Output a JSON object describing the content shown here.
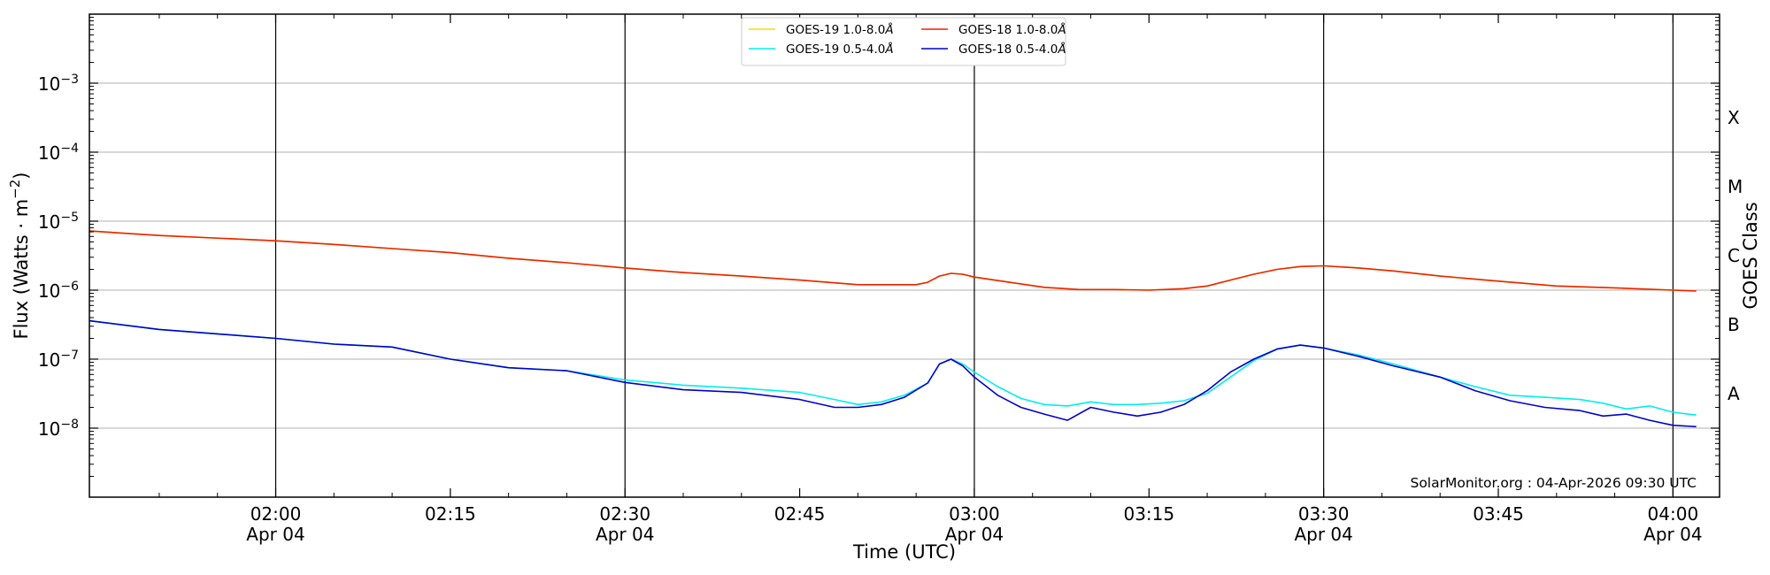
{
  "chart_data": {
    "type": "line",
    "xlabel": "Time (UTC)",
    "ylabel": "Flux (Watts · m",
    "ylabel_sup": "−2",
    "ylabel_close": ")",
    "yscale": "log",
    "ylim": [
      1e-09,
      0.01
    ],
    "xlim": [
      "01:44",
      "04:04"
    ],
    "y_ticks": [
      {
        "value": 1e-08,
        "base": "10",
        "exp": "−8"
      },
      {
        "value": 1e-07,
        "base": "10",
        "exp": "−7"
      },
      {
        "value": 1e-06,
        "base": "10",
        "exp": "−6"
      },
      {
        "value": 1e-05,
        "base": "10",
        "exp": "−5"
      },
      {
        "value": 0.0001,
        "base": "10",
        "exp": "−4"
      },
      {
        "value": 0.001,
        "base": "10",
        "exp": "−3"
      }
    ],
    "x_ticks": [
      {
        "time": "02:00",
        "label": "02:00",
        "date": "Apr 04",
        "vline": true
      },
      {
        "time": "02:15",
        "label": "02:15",
        "date": "",
        "vline": false
      },
      {
        "time": "02:30",
        "label": "02:30",
        "date": "Apr 04",
        "vline": true
      },
      {
        "time": "02:45",
        "label": "02:45",
        "date": "",
        "vline": false
      },
      {
        "time": "03:00",
        "label": "03:00",
        "date": "Apr 04",
        "vline": true
      },
      {
        "time": "03:15",
        "label": "03:15",
        "date": "",
        "vline": false
      },
      {
        "time": "03:30",
        "label": "03:30",
        "date": "Apr 04",
        "vline": true
      },
      {
        "time": "03:45",
        "label": "03:45",
        "date": "",
        "vline": false
      },
      {
        "time": "04:00",
        "label": "04:00",
        "date": "Apr 04",
        "vline": true
      }
    ],
    "right_axis": {
      "title": "GOES Class",
      "classes": [
        {
          "label": "A",
          "value": 3.16e-08
        },
        {
          "label": "B",
          "value": 3.16e-07
        },
        {
          "label": "C",
          "value": 3.16e-06
        },
        {
          "label": "M",
          "value": 3.16e-05
        },
        {
          "label": "X",
          "value": 0.000316
        }
      ]
    },
    "grid": "horizontal",
    "legend_position": "top-center",
    "legend": [
      {
        "label": "GOES-19 1.0-8.0",
        "unit": "Å",
        "color": "#ffd700"
      },
      {
        "label": "GOES-19 0.5-4.0",
        "unit": "Å",
        "color": "#00eeee"
      },
      {
        "label": "GOES-18 1.0-8.0",
        "unit": "Å",
        "color": "#ee2200"
      },
      {
        "label": "GOES-18 0.5-4.0",
        "unit": "Å",
        "color": "#0000cc"
      }
    ],
    "credit": "SolarMonitor.org : 04-Apr-2026 09:30 UTC",
    "series": [
      {
        "name": "GOES-19 1.0-8.0Å",
        "color": "#ffd700",
        "x": [
          "01:44",
          "01:50",
          "02:00",
          "02:05",
          "02:10",
          "02:15",
          "02:20",
          "02:25",
          "02:30",
          "02:35",
          "02:40",
          "02:45",
          "02:50",
          "02:53",
          "02:55",
          "02:56",
          "02:57",
          "02:58",
          "02:59",
          "03:00",
          "03:03",
          "03:06",
          "03:09",
          "03:12",
          "03:15",
          "03:18",
          "03:20",
          "03:22",
          "03:24",
          "03:26",
          "03:28",
          "03:30",
          "03:33",
          "03:36",
          "03:40",
          "03:45",
          "03:50",
          "03:55",
          "04:00",
          "04:02"
        ],
        "values": [
          7.2e-06,
          6.2e-06,
          5.2e-06,
          4.6e-06,
          4e-06,
          3.5e-06,
          2.9e-06,
          2.5e-06,
          2.1e-06,
          1.8e-06,
          1.6e-06,
          1.4e-06,
          1.2e-06,
          1.2e-06,
          1.2e-06,
          1.3e-06,
          1.6e-06,
          1.75e-06,
          1.7e-06,
          1.55e-06,
          1.3e-06,
          1.1e-06,
          1.02e-06,
          1.02e-06,
          1e-06,
          1.05e-06,
          1.15e-06,
          1.4e-06,
          1.7e-06,
          2e-06,
          2.2e-06,
          2.25e-06,
          2.1e-06,
          1.9e-06,
          1.6e-06,
          1.35e-06,
          1.15e-06,
          1.08e-06,
          1e-06,
          9.7e-07
        ]
      },
      {
        "name": "GOES-18 1.0-8.0Å",
        "color": "#ee2200",
        "x": [
          "01:44",
          "01:50",
          "02:00",
          "02:05",
          "02:10",
          "02:15",
          "02:20",
          "02:25",
          "02:30",
          "02:35",
          "02:40",
          "02:45",
          "02:50",
          "02:53",
          "02:55",
          "02:56",
          "02:57",
          "02:58",
          "02:59",
          "03:00",
          "03:03",
          "03:06",
          "03:09",
          "03:12",
          "03:15",
          "03:18",
          "03:20",
          "03:22",
          "03:24",
          "03:26",
          "03:28",
          "03:30",
          "03:33",
          "03:36",
          "03:40",
          "03:45",
          "03:50",
          "03:55",
          "04:00",
          "04:02"
        ],
        "values": [
          7.2e-06,
          6.2e-06,
          5.2e-06,
          4.6e-06,
          4e-06,
          3.5e-06,
          2.9e-06,
          2.5e-06,
          2.1e-06,
          1.8e-06,
          1.6e-06,
          1.4e-06,
          1.2e-06,
          1.2e-06,
          1.2e-06,
          1.3e-06,
          1.6e-06,
          1.75e-06,
          1.7e-06,
          1.55e-06,
          1.3e-06,
          1.1e-06,
          1.02e-06,
          1.02e-06,
          1e-06,
          1.05e-06,
          1.15e-06,
          1.4e-06,
          1.7e-06,
          2e-06,
          2.2e-06,
          2.25e-06,
          2.1e-06,
          1.9e-06,
          1.6e-06,
          1.35e-06,
          1.15e-06,
          1.08e-06,
          1e-06,
          9.7e-07
        ]
      },
      {
        "name": "GOES-19 0.5-4.0Å",
        "color": "#00eeee",
        "x": [
          "01:44",
          "01:50",
          "02:00",
          "02:05",
          "02:10",
          "02:15",
          "02:20",
          "02:25",
          "02:30",
          "02:35",
          "02:40",
          "02:45",
          "02:48",
          "02:50",
          "02:52",
          "02:54",
          "02:56",
          "02:57",
          "02:58",
          "02:59",
          "03:00",
          "03:02",
          "03:04",
          "03:06",
          "03:08",
          "03:10",
          "03:12",
          "03:14",
          "03:16",
          "03:18",
          "03:20",
          "03:22",
          "03:24",
          "03:26",
          "03:28",
          "03:30",
          "03:33",
          "03:36",
          "03:40",
          "03:43",
          "03:46",
          "03:49",
          "03:52",
          "03:54",
          "03:56",
          "03:58",
          "04:00",
          "04:02"
        ],
        "values": [
          3.6e-07,
          2.7e-07,
          2e-07,
          1.65e-07,
          1.5e-07,
          1e-07,
          7.5e-08,
          6.8e-08,
          5e-08,
          4.2e-08,
          3.8e-08,
          3.3e-08,
          2.6e-08,
          2.2e-08,
          2.4e-08,
          3e-08,
          4.5e-08,
          8.5e-08,
          1e-07,
          8.5e-08,
          6.5e-08,
          4e-08,
          2.7e-08,
          2.2e-08,
          2.1e-08,
          2.4e-08,
          2.2e-08,
          2.2e-08,
          2.3e-08,
          2.5e-08,
          3.2e-08,
          5.5e-08,
          9.5e-08,
          1.4e-07,
          1.6e-07,
          1.45e-07,
          1.15e-07,
          8.5e-08,
          5.5e-08,
          4e-08,
          3e-08,
          2.8e-08,
          2.6e-08,
          2.3e-08,
          1.9e-08,
          2.1e-08,
          1.7e-08,
          1.55e-08
        ]
      },
      {
        "name": "GOES-18 0.5-4.0Å",
        "color": "#0000cc",
        "x": [
          "01:44",
          "01:50",
          "02:00",
          "02:05",
          "02:10",
          "02:15",
          "02:20",
          "02:25",
          "02:30",
          "02:35",
          "02:40",
          "02:45",
          "02:48",
          "02:50",
          "02:52",
          "02:54",
          "02:56",
          "02:57",
          "02:58",
          "02:59",
          "03:00",
          "03:02",
          "03:04",
          "03:06",
          "03:08",
          "03:10",
          "03:12",
          "03:14",
          "03:16",
          "03:18",
          "03:20",
          "03:22",
          "03:24",
          "03:26",
          "03:28",
          "03:30",
          "03:33",
          "03:36",
          "03:40",
          "03:43",
          "03:46",
          "03:49",
          "03:52",
          "03:54",
          "03:56",
          "03:58",
          "04:00",
          "04:02"
        ],
        "values": [
          3.6e-07,
          2.7e-07,
          2e-07,
          1.65e-07,
          1.5e-07,
          1e-07,
          7.5e-08,
          6.8e-08,
          4.6e-08,
          3.6e-08,
          3.3e-08,
          2.6e-08,
          2e-08,
          2e-08,
          2.2e-08,
          2.8e-08,
          4.5e-08,
          8.5e-08,
          1e-07,
          8e-08,
          5.5e-08,
          3e-08,
          2e-08,
          1.6e-08,
          1.3e-08,
          2e-08,
          1.7e-08,
          1.5e-08,
          1.7e-08,
          2.2e-08,
          3.5e-08,
          6.5e-08,
          1e-07,
          1.4e-07,
          1.6e-07,
          1.45e-07,
          1.1e-07,
          8e-08,
          5.5e-08,
          3.5e-08,
          2.5e-08,
          2e-08,
          1.8e-08,
          1.5e-08,
          1.6e-08,
          1.3e-08,
          1.1e-08,
          1.05e-08
        ]
      }
    ]
  }
}
